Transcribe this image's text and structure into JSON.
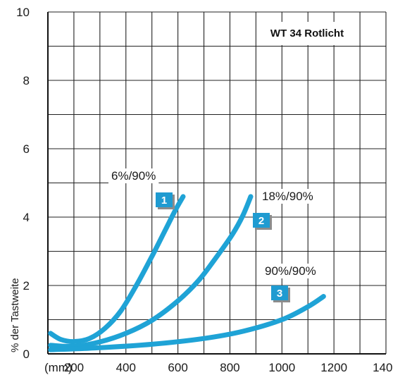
{
  "chart_data": {
    "type": "line",
    "title": "WT 34 Rotlicht",
    "ylabel": "% der Tastweite",
    "xlabel": "(mm)",
    "xlim": [
      100,
      1400
    ],
    "ylim": [
      0,
      10
    ],
    "x_ticks": [
      200,
      400,
      600,
      800,
      1000,
      1200,
      1400
    ],
    "y_ticks": [
      0,
      2,
      4,
      6,
      8,
      10
    ],
    "x_unit_label": "(mm)",
    "grid": true,
    "line_color": "#1fa3d6",
    "badge_color": "#1f9bd1",
    "series": [
      {
        "name": "6%/90%",
        "badge": "1",
        "x": [
          110,
          150,
          200,
          260,
          320,
          380,
          440,
          500,
          550,
          590,
          620
        ],
        "y": [
          0.6,
          0.42,
          0.36,
          0.45,
          0.75,
          1.25,
          2.0,
          2.85,
          3.6,
          4.2,
          4.6
        ]
      },
      {
        "name": "18%/90%",
        "badge": "2",
        "x": [
          110,
          200,
          300,
          400,
          500,
          600,
          680,
          750,
          810,
          850,
          880
        ],
        "y": [
          0.25,
          0.22,
          0.35,
          0.6,
          0.98,
          1.55,
          2.15,
          2.85,
          3.5,
          4.05,
          4.6
        ]
      },
      {
        "name": "90%/90%",
        "badge": "3",
        "x": [
          110,
          300,
          500,
          700,
          850,
          1000,
          1100,
          1160
        ],
        "y": [
          0.12,
          0.18,
          0.28,
          0.45,
          0.66,
          1.0,
          1.38,
          1.68
        ]
      }
    ]
  }
}
